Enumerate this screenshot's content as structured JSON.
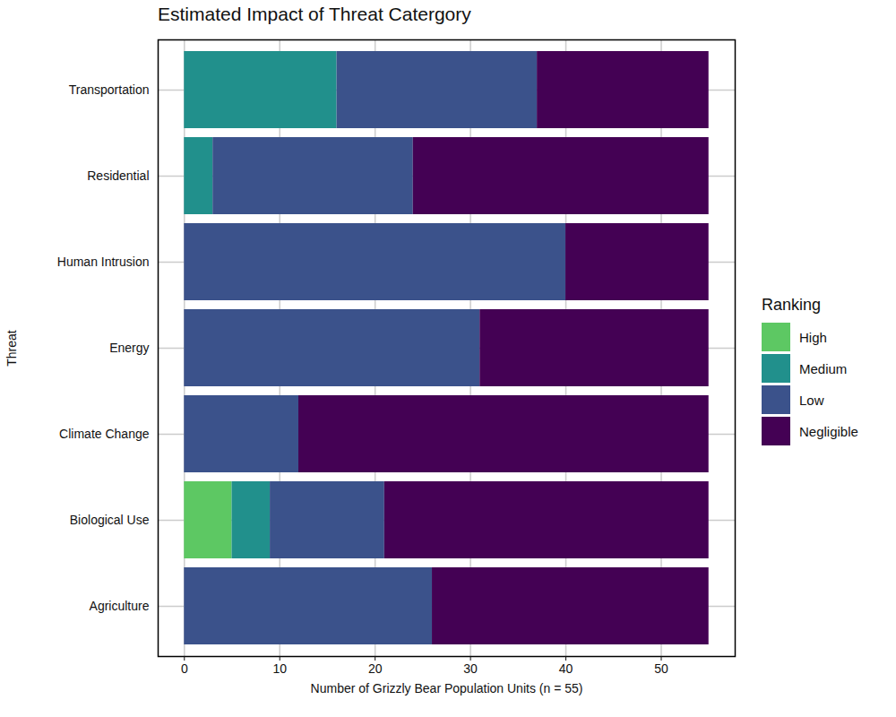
{
  "chart_data": {
    "type": "bar",
    "orientation": "horizontal",
    "stacked": true,
    "title": "Estimated Impact of Threat Catergory",
    "xlabel": "Number of Grizzly Bear Population Units (n = 55)",
    "ylabel": "Threat",
    "legend_title": "Ranking",
    "legend": "right",
    "grid": true,
    "categories": [
      "Transportation",
      "Residential",
      "Human Intrusion",
      "Energy",
      "Climate Change",
      "Biological Use",
      "Agriculture"
    ],
    "series": [
      {
        "name": "High",
        "color": "#5dc863",
        "values": [
          0,
          0,
          0,
          0,
          0,
          5,
          0
        ]
      },
      {
        "name": "Medium",
        "color": "#21908c",
        "values": [
          16,
          3,
          0,
          0,
          0,
          4,
          0
        ]
      },
      {
        "name": "Low",
        "color": "#3b528b",
        "values": [
          21,
          21,
          40,
          31,
          12,
          12,
          26
        ]
      },
      {
        "name": "Negligible",
        "color": "#440154",
        "values": [
          18,
          31,
          15,
          24,
          43,
          34,
          29
        ]
      }
    ],
    "xlim": [
      -2.75,
      57.75
    ],
    "xticks": [
      0,
      10,
      20,
      30,
      40,
      50
    ]
  }
}
